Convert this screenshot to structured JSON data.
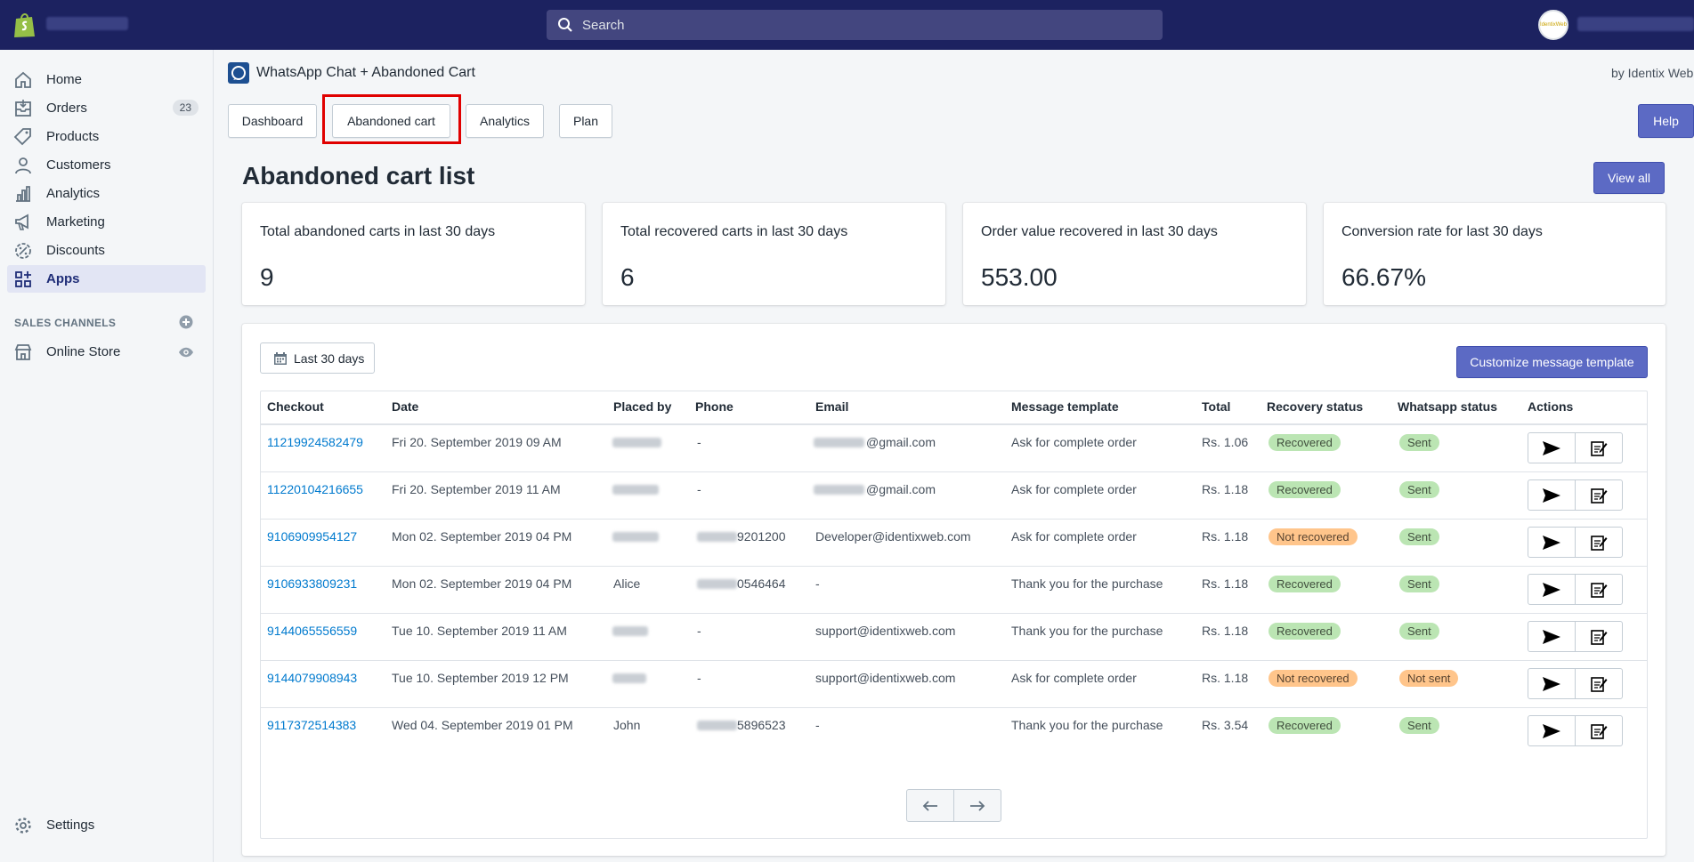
{
  "topbar": {
    "search_placeholder": "Search",
    "logo_icon": "shopify-bag-icon",
    "avatar_text": "IdentixWeb"
  },
  "sidebar": {
    "items": [
      {
        "label": "Home",
        "icon": "home-icon"
      },
      {
        "label": "Orders",
        "icon": "orders-icon",
        "count": "23"
      },
      {
        "label": "Products",
        "icon": "tag-icon"
      },
      {
        "label": "Customers",
        "icon": "person-icon"
      },
      {
        "label": "Analytics",
        "icon": "bar-chart-icon"
      },
      {
        "label": "Marketing",
        "icon": "megaphone-icon"
      },
      {
        "label": "Discounts",
        "icon": "discount-icon"
      },
      {
        "label": "Apps",
        "icon": "apps-icon",
        "active": true
      }
    ],
    "sales_channels_label": "SALES CHANNELS",
    "online_store_label": "Online Store",
    "settings_label": "Settings"
  },
  "app": {
    "title": "WhatsApp Chat + Abandoned Cart",
    "by": "by Identix Web",
    "tabs": [
      "Dashboard",
      "Abandoned cart",
      "Analytics",
      "Plan"
    ],
    "active_tab": "Abandoned cart",
    "help_label": "Help"
  },
  "page": {
    "title": "Abandoned cart list",
    "view_all_label": "View all",
    "date_filter_label": "Last 30 days",
    "customize_label": "Customize message template"
  },
  "stats": [
    {
      "label": "Total abandoned carts in last 30 days",
      "value": "9"
    },
    {
      "label": "Total recovered carts in last 30 days",
      "value": "6"
    },
    {
      "label": "Order value recovered in last 30 days",
      "value": "553.00"
    },
    {
      "label": "Conversion rate for last 30 days",
      "value": "66.67%"
    }
  ],
  "table": {
    "headers": [
      "Checkout",
      "Date",
      "Placed by",
      "Phone",
      "Email",
      "Message template",
      "Total",
      "Recovery status",
      "Whatsapp status",
      "Actions"
    ],
    "rows": [
      {
        "checkout": "11219924582479",
        "date": "Fri 20. September 2019 09 AM",
        "placed_by": "",
        "phone": "-",
        "email": "@gmail.com",
        "template": "Ask for complete order",
        "total": "Rs. 1.06",
        "recovery": "Recovered",
        "whatsapp": "Sent"
      },
      {
        "checkout": "11220104216655",
        "date": "Fri 20. September 2019 11 AM",
        "placed_by": "",
        "phone": "-",
        "email": "@gmail.com",
        "template": "Ask for complete order",
        "total": "Rs. 1.18",
        "recovery": "Recovered",
        "whatsapp": "Sent"
      },
      {
        "checkout": "9106909954127",
        "date": "Mon 02. September 2019 04 PM",
        "placed_by": "",
        "phone": "9201200",
        "email": "Developer@identixweb.com",
        "template": "Ask for complete order",
        "total": "Rs. 1.18",
        "recovery": "Not recovered",
        "whatsapp": "Sent"
      },
      {
        "checkout": "9106933809231",
        "date": "Mon 02. September 2019 04 PM",
        "placed_by": "Alice",
        "phone": "0546464",
        "email": "-",
        "template": "Thank you for the purchase",
        "total": "Rs. 1.18",
        "recovery": "Recovered",
        "whatsapp": "Sent"
      },
      {
        "checkout": "9144065556559",
        "date": "Tue 10. September 2019 11 AM",
        "placed_by": "",
        "phone": "-",
        "email": "support@identixweb.com",
        "template": "Thank you for the purchase",
        "total": "Rs. 1.18",
        "recovery": "Recovered",
        "whatsapp": "Sent"
      },
      {
        "checkout": "9144079908943",
        "date": "Tue 10. September 2019 12 PM",
        "placed_by": "",
        "phone": "-",
        "email": "support@identixweb.com",
        "template": "Ask for complete order",
        "total": "Rs. 1.18",
        "recovery": "Not recovered",
        "whatsapp": "Not sent"
      },
      {
        "checkout": "9117372514383",
        "date": "Wed 04. September 2019 01 PM",
        "placed_by": "John",
        "phone": "5896523",
        "email": "-",
        "template": "Thank you for the purchase",
        "total": "Rs. 3.54",
        "recovery": "Recovered",
        "whatsapp": "Sent"
      }
    ],
    "action_icons": [
      "send-icon",
      "edit-note-icon"
    ]
  },
  "pagination": {
    "prev_icon": "arrow-left-icon",
    "next_icon": "arrow-right-icon"
  },
  "colors": {
    "topbar": "#1c2260",
    "primary": "#5c6ac4",
    "link": "#007ace",
    "success_badge": "#bbe5b3",
    "warning_badge": "#ffc58b",
    "highlight": "#e00000"
  }
}
